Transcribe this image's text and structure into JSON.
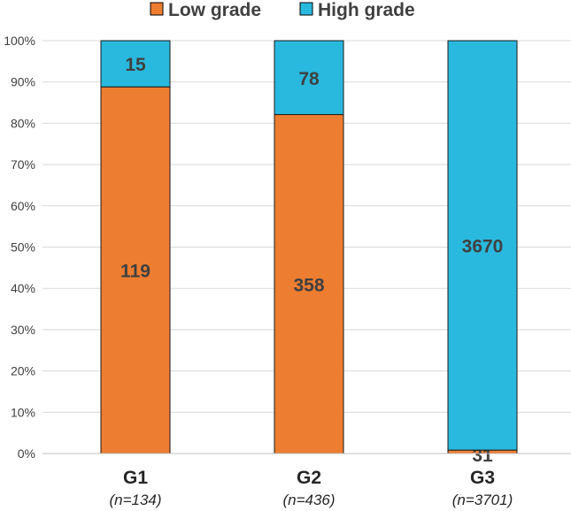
{
  "chart_data": {
    "type": "stacked-bar-100",
    "title": "",
    "xlabel": "",
    "ylabel": "",
    "ylim": [
      0,
      100
    ],
    "y_ticks": [
      "0%",
      "10%",
      "20%",
      "30%",
      "40%",
      "50%",
      "60%",
      "70%",
      "80%",
      "90%",
      "100%"
    ],
    "grid": true,
    "legend_position": "top",
    "categories": [
      "G1",
      "G2",
      "G3"
    ],
    "category_notes": [
      "(n=134)",
      "(n=436)",
      "(n=3701)"
    ],
    "series": [
      {
        "name": "Low grade",
        "color": "#ED7D31",
        "values": [
          119,
          358,
          31
        ]
      },
      {
        "name": "High grade",
        "color": "#29B9DE",
        "values": [
          15,
          78,
          3670
        ]
      }
    ]
  }
}
